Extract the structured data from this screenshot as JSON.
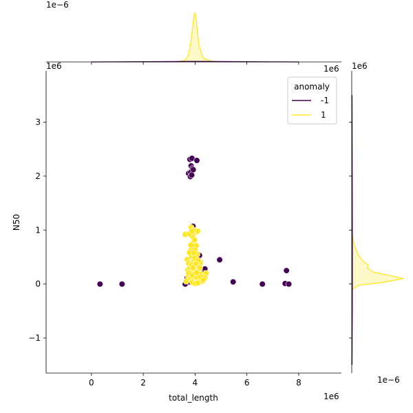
{
  "chart_data": {
    "type": "scatter",
    "title": "",
    "xlabel": "total_length",
    "ylabel": "N50",
    "x_offset_label": "1e6",
    "y_offset_label": "1e6",
    "top_marginal_offset_label": "1e−6",
    "right_marginal_offset_label_x": "1e−6",
    "marginal_corner_offset_label": "1e6",
    "right_marginal_top_label": "1e6",
    "xlim": [
      -1.75,
      9.65
    ],
    "ylim": [
      -1.65,
      3.95
    ],
    "xticks": [
      {
        "v": 0,
        "label": "0"
      },
      {
        "v": 2,
        "label": "2"
      },
      {
        "v": 4,
        "label": "4"
      },
      {
        "v": 6,
        "label": "6"
      },
      {
        "v": 8,
        "label": "8"
      }
    ],
    "yticks": [
      {
        "v": -1,
        "label": "−1"
      },
      {
        "v": 0,
        "label": "0"
      },
      {
        "v": 1,
        "label": "1"
      },
      {
        "v": 2,
        "label": "2"
      },
      {
        "v": 3,
        "label": "3"
      }
    ],
    "grid": false,
    "legend": {
      "title": "anomaly",
      "position": "top-right",
      "entries": [
        {
          "label": "-1",
          "color": "#440154"
        },
        {
          "label": "1",
          "color": "#fde725"
        }
      ]
    },
    "colors": {
      "anomaly_-1": "#440154",
      "anomaly_1": "#fde725"
    },
    "series": [
      {
        "name": "-1",
        "color": "#440154",
        "points": [
          [
            0.33,
            0.0
          ],
          [
            1.18,
            0.0
          ],
          [
            3.62,
            0.0
          ],
          [
            4.38,
            0.28
          ],
          [
            4.95,
            0.45
          ],
          [
            5.47,
            0.04
          ],
          [
            6.6,
            0.0
          ],
          [
            7.48,
            0.01
          ],
          [
            7.53,
            0.25
          ],
          [
            7.62,
            0.0
          ],
          [
            3.75,
            2.05
          ],
          [
            3.8,
            2.31
          ],
          [
            3.88,
            2.33
          ],
          [
            4.07,
            2.29
          ],
          [
            3.85,
            2.19
          ],
          [
            3.9,
            2.14
          ],
          [
            3.83,
            2.07
          ],
          [
            3.82,
            1.99
          ],
          [
            3.93,
            2.12
          ],
          [
            3.87,
            2.02
          ],
          [
            3.92,
            1.07
          ],
          [
            4.05,
            0.4
          ],
          [
            4.17,
            0.53
          ],
          [
            3.98,
            0.7
          ],
          [
            4.22,
            0.1
          ],
          [
            4.3,
            0.2
          ],
          [
            3.7,
            0.12
          ],
          [
            3.78,
            0.04
          ]
        ]
      },
      {
        "name": "1",
        "color": "#fde725",
        "points": [
          [
            3.62,
            0.92
          ],
          [
            3.85,
            1.05
          ],
          [
            3.9,
            0.88
          ],
          [
            4.02,
            0.96
          ],
          [
            4.1,
            0.98
          ],
          [
            3.95,
            1.0
          ],
          [
            3.78,
            0.93
          ],
          [
            3.88,
            0.98
          ],
          [
            3.7,
            0.45
          ],
          [
            3.82,
            0.62
          ],
          [
            3.91,
            0.75
          ],
          [
            3.98,
            0.82
          ],
          [
            4.04,
            0.71
          ],
          [
            4.0,
            0.63
          ],
          [
            3.86,
            0.51
          ],
          [
            3.76,
            0.38
          ],
          [
            3.94,
            0.42
          ],
          [
            4.08,
            0.55
          ],
          [
            4.11,
            0.34
          ],
          [
            4.2,
            0.4
          ],
          [
            3.72,
            0.26
          ],
          [
            3.8,
            0.3
          ],
          [
            3.9,
            0.22
          ],
          [
            4.0,
            0.28
          ],
          [
            4.15,
            0.25
          ],
          [
            4.25,
            0.18
          ],
          [
            4.35,
            0.15
          ],
          [
            4.42,
            0.2
          ],
          [
            3.74,
            0.14
          ],
          [
            3.84,
            0.1
          ],
          [
            3.95,
            0.08
          ],
          [
            4.06,
            0.06
          ],
          [
            4.16,
            0.09
          ],
          [
            4.28,
            0.05
          ],
          [
            4.38,
            0.12
          ],
          [
            3.66,
            0.05
          ],
          [
            3.9,
            0.03
          ],
          [
            4.0,
            0.01
          ],
          [
            4.1,
            0.02
          ],
          [
            3.96,
            0.16
          ],
          [
            4.04,
            0.13
          ],
          [
            3.86,
            0.35
          ],
          [
            3.98,
            0.48
          ],
          [
            4.12,
            0.44
          ],
          [
            3.79,
            0.58
          ],
          [
            4.02,
            0.37
          ],
          [
            3.92,
            0.3
          ],
          [
            4.18,
            0.3
          ],
          [
            3.84,
            0.72
          ],
          [
            3.96,
            0.58
          ],
          [
            4.06,
            0.21
          ],
          [
            4.22,
            0.13
          ],
          [
            3.76,
            0.2
          ],
          [
            3.88,
            0.16
          ],
          [
            4.32,
            0.08
          ]
        ]
      }
    ],
    "marginal_x": {
      "series": [
        {
          "name": "1",
          "color": "#fde725",
          "x": [
            3.3,
            3.6,
            3.75,
            3.85,
            3.95,
            4.0,
            4.05,
            4.15,
            4.3,
            4.6,
            5.0
          ],
          "density": [
            0.0,
            0.03,
            0.14,
            0.45,
            0.9,
            1.0,
            0.8,
            0.35,
            0.08,
            0.02,
            0.0
          ]
        },
        {
          "name": "-1",
          "color": "#440154",
          "x": [
            0.0,
            2.0,
            3.5,
            4.0,
            4.5,
            6.0,
            8.0
          ],
          "density": [
            0.0,
            0.005,
            0.01,
            0.012,
            0.01,
            0.005,
            0.0
          ]
        }
      ]
    },
    "marginal_y": {
      "series": [
        {
          "name": "1",
          "color": "#fde725",
          "y": [
            -0.1,
            -0.02,
            0.03,
            0.1,
            0.15,
            0.22,
            0.3,
            0.35,
            0.42,
            0.55,
            0.7,
            0.85,
            1.0
          ],
          "density": [
            0.0,
            0.15,
            0.6,
            1.0,
            0.78,
            0.42,
            0.3,
            0.32,
            0.22,
            0.12,
            0.06,
            0.02,
            0.0
          ]
        },
        {
          "name": "-1",
          "color": "#440154",
          "y": [
            -1.5,
            -0.5,
            0.0,
            0.5,
            1.5,
            2.5,
            3.5
          ],
          "density": [
            0.005,
            0.01,
            0.012,
            0.012,
            0.01,
            0.008,
            0.005
          ]
        }
      ]
    }
  }
}
